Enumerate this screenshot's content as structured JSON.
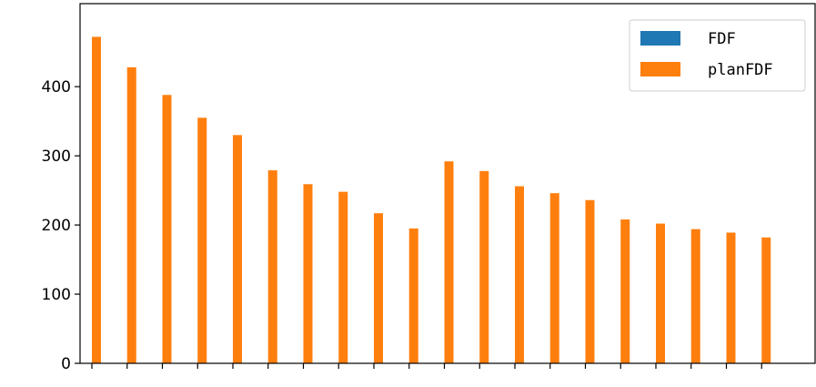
{
  "chart_data": {
    "type": "bar",
    "categories": [
      "",
      "",
      "",
      "",
      "",
      "",
      "",
      "",
      "",
      "",
      "",
      "",
      "",
      "",
      "",
      "",
      "",
      "",
      "",
      ""
    ],
    "series": [
      {
        "name": "FDF",
        "color": "#1f77b4",
        "values": [
          0,
          0,
          0,
          0,
          0,
          0,
          0,
          0,
          0,
          0,
          0,
          0,
          0,
          0,
          0,
          0,
          0,
          0,
          0,
          0
        ]
      },
      {
        "name": "planFDF",
        "color": "#ff7f0e",
        "values": [
          472,
          428,
          388,
          355,
          330,
          279,
          259,
          248,
          217,
          195,
          292,
          278,
          256,
          246,
          236,
          208,
          202,
          194,
          189,
          182
        ]
      }
    ],
    "yticks": [
      0,
      100,
      200,
      300,
      400
    ],
    "ylim": [
      0,
      500
    ],
    "legend_position": "top-right",
    "grid": false,
    "title": "",
    "xlabel": "",
    "ylabel": ""
  }
}
